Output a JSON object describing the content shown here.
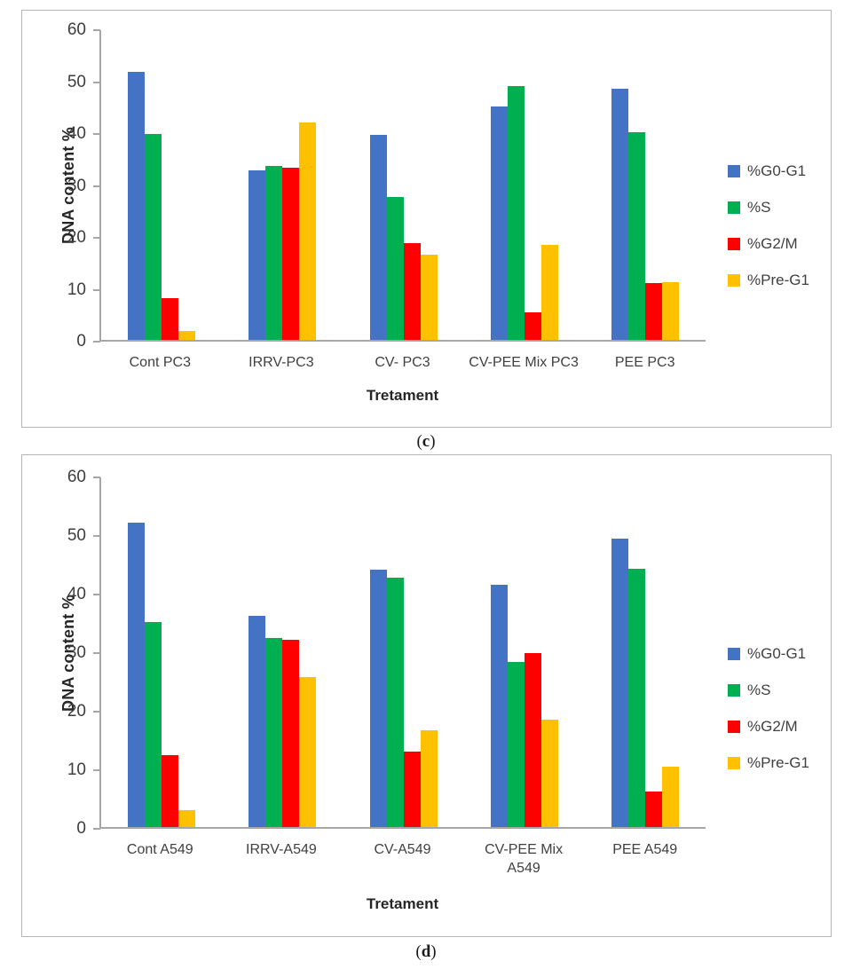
{
  "figure": {
    "captions": [
      {
        "prefix": "(",
        "letter": "c",
        "suffix": ")"
      },
      {
        "prefix": "(",
        "letter": "d",
        "suffix": ")"
      }
    ]
  },
  "colors": {
    "g0g1_blue": "#4472C4",
    "s_green": "#00B050",
    "g2m_red": "#FF0000",
    "preg1_yellow": "#FFC000",
    "axis_gray": "#a6a6a6"
  },
  "chart_data": [
    {
      "type": "bar",
      "panel": "c",
      "title": "",
      "xlabel": "Tretament",
      "ylabel": "DNA content %",
      "ylim": [
        0,
        60
      ],
      "yticks": [
        0,
        10,
        20,
        30,
        40,
        50,
        60
      ],
      "grid": false,
      "legend_position": "right",
      "categories": [
        "Cont PC3",
        "IRRV-PC3",
        "CV- PC3",
        "CV-PEE Mix PC3",
        "PEE PC3"
      ],
      "series": [
        {
          "name": "%G0-G1",
          "color": "#4472C4",
          "values": [
            52.0,
            32.8,
            39.7,
            45.2,
            48.6
          ]
        },
        {
          "name": "%S",
          "color": "#00B050",
          "values": [
            39.9,
            33.7,
            27.7,
            49.2,
            40.2
          ]
        },
        {
          "name": "%G2/M",
          "color": "#FF0000",
          "values": [
            8.0,
            33.3,
            18.8,
            5.4,
            11.0
          ]
        },
        {
          "name": "%Pre-G1",
          "color": "#FFC000",
          "values": [
            1.8,
            42.2,
            16.5,
            18.4,
            11.2
          ]
        }
      ]
    },
    {
      "type": "bar",
      "panel": "d",
      "title": "",
      "xlabel": "Tretament",
      "ylabel": "DNA content %",
      "ylim": [
        0,
        60
      ],
      "yticks": [
        0,
        10,
        20,
        30,
        40,
        50,
        60
      ],
      "grid": false,
      "legend_position": "right",
      "categories": [
        "Cont A549",
        "IRRV-A549",
        "CV-A549",
        "CV-PEE Mix\nA549",
        "PEE A549"
      ],
      "series": [
        {
          "name": "%G0-G1",
          "color": "#4472C4",
          "values": [
            52.3,
            36.2,
            44.2,
            41.5,
            49.5
          ]
        },
        {
          "name": "%S",
          "color": "#00B050",
          "values": [
            35.2,
            32.5,
            42.8,
            28.4,
            44.3
          ]
        },
        {
          "name": "%G2/M",
          "color": "#FF0000",
          "values": [
            12.3,
            32.2,
            12.9,
            29.9,
            6.1
          ]
        },
        {
          "name": "%Pre-G1",
          "color": "#FFC000",
          "values": [
            2.9,
            25.7,
            16.6,
            18.4,
            10.4
          ]
        }
      ]
    }
  ]
}
